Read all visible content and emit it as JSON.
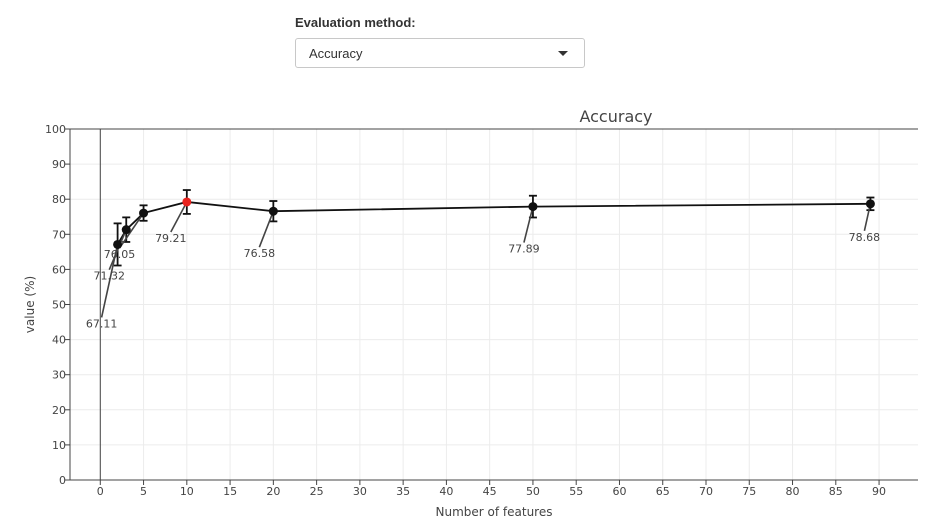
{
  "control": {
    "label": "Evaluation method:",
    "selected": "Accuracy"
  },
  "chart_data": {
    "type": "line",
    "title": "Accuracy",
    "xlabel": "Number of features",
    "ylabel": "value (%)",
    "xlim": [
      -3.5,
      94.5
    ],
    "ylim": [
      0,
      100
    ],
    "xticks": [
      0,
      5,
      10,
      15,
      20,
      25,
      30,
      35,
      40,
      45,
      50,
      55,
      60,
      65,
      70,
      75,
      80,
      85,
      90
    ],
    "yticks": [
      0,
      10,
      20,
      30,
      40,
      50,
      60,
      70,
      80,
      90,
      100
    ],
    "grid": true,
    "series": [
      {
        "x": [
          2,
          3,
          5,
          10,
          20,
          50,
          89
        ],
        "y": [
          67.11,
          71.32,
          76.05,
          79.21,
          76.58,
          77.89,
          78.68
        ],
        "error": [
          6,
          3.5,
          2.2,
          3.4,
          2.9,
          3.1,
          1.8
        ],
        "labels": [
          "67.11",
          "71.32",
          "76.05",
          "79.21",
          "76.58",
          "77.89",
          "78.68"
        ],
        "highlight_index": 3,
        "color": "#111111",
        "highlight_color": "#e8231e"
      }
    ]
  }
}
